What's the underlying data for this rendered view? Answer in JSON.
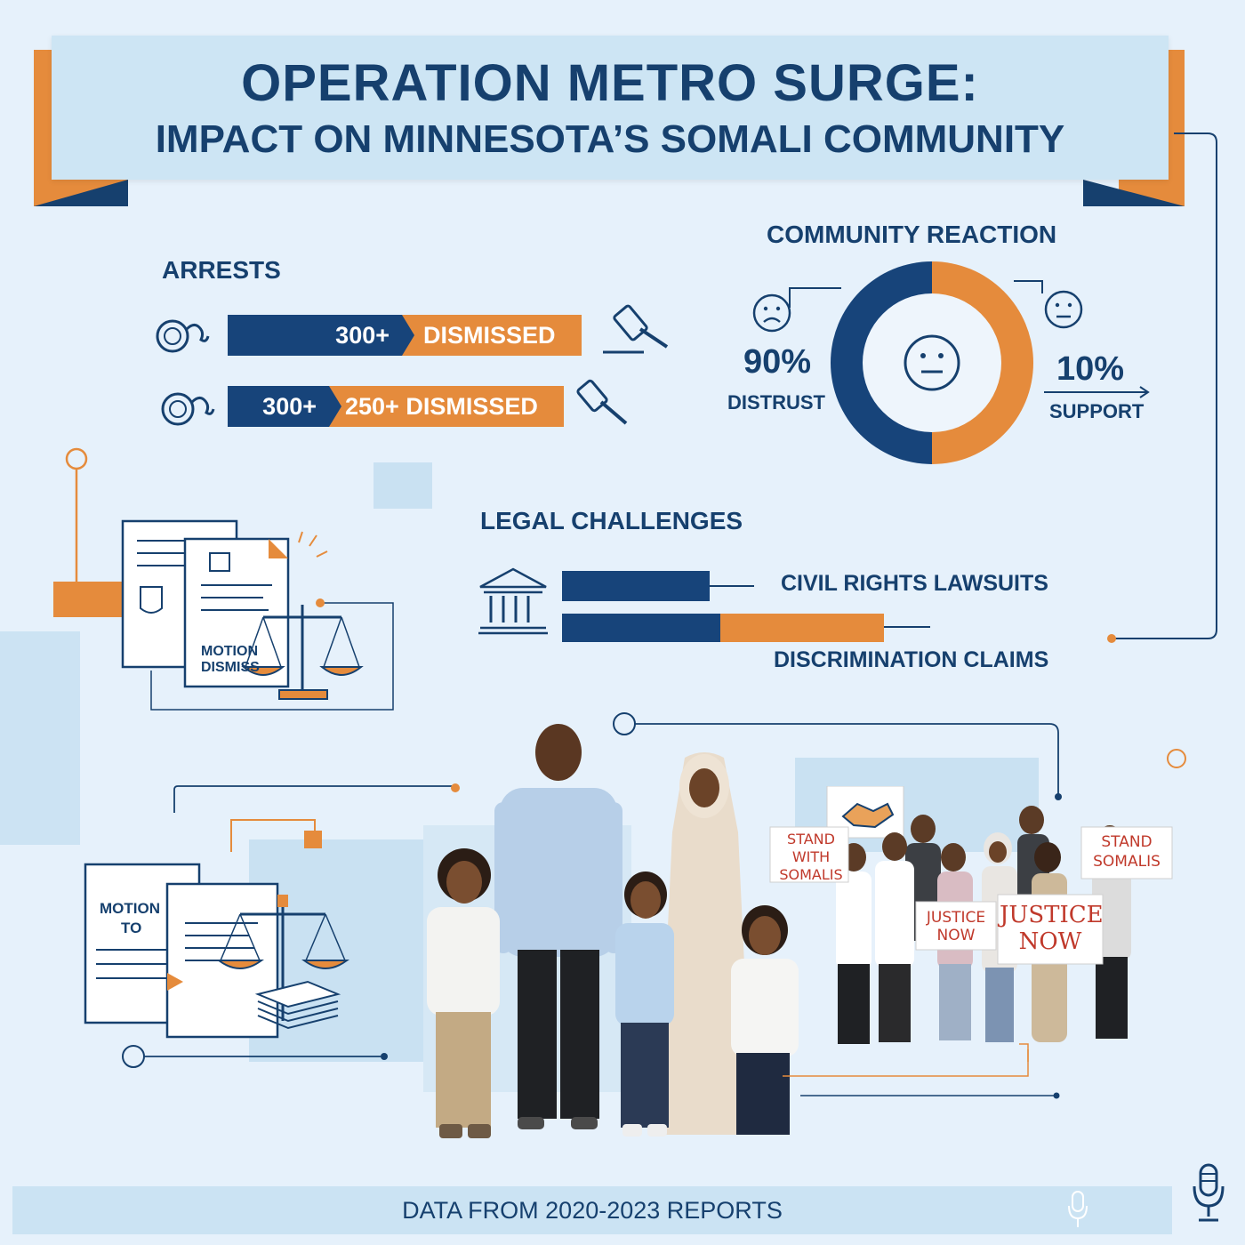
{
  "title": {
    "line1": "OPERATION METRO SURGE:",
    "line2": "IMPACT ON MINNESOTA’S SOMALI COMMUNITY"
  },
  "arrests": {
    "heading": "ARRESTS",
    "rows": [
      {
        "count": "300+",
        "dismissed": "DISMISSED"
      },
      {
        "count": "300+",
        "dismissed": "250+ DISMISSED"
      }
    ]
  },
  "community_reaction": {
    "heading": "COMMUNITY REACTION",
    "distrust": {
      "percent": "90%",
      "label": "DISTRUST",
      "value": 90
    },
    "support": {
      "percent": "10%",
      "label": "SUPPORT",
      "value": 10
    },
    "colors": {
      "distrust": "#17447a",
      "support": "#e58b3c"
    }
  },
  "legal_challenges": {
    "heading": "LEGAL CHALLENGES",
    "items": [
      {
        "label": "CIVIL RIGHTS LAWSUITS"
      },
      {
        "label": "DISCRIMINATION CLAIMS"
      }
    ]
  },
  "documents": {
    "doc1_text": "MOTION DISMISS",
    "doc2_line1": "MOTION",
    "doc2_line2": "TO"
  },
  "signs": {
    "sign1": "STAND WITH SOMALIS",
    "sign2": "STAND SOMALIS",
    "sign3": "JUSTICE NOW",
    "sign4": "JUSTICE NOW"
  },
  "footer": {
    "text": "DATA FROM 2020-2023 REPORTS"
  },
  "colors": {
    "navy": "#17447a",
    "orange": "#e58b3c",
    "background": "#e6f1fb",
    "panel": "#cde5f4"
  },
  "icons": [
    "handcuffs-icon",
    "gavel-icon",
    "sad-face-icon",
    "neutral-face-icon",
    "courthouse-icon",
    "scales-icon",
    "document-icon",
    "microphone-icon",
    "handshake-icon"
  ]
}
